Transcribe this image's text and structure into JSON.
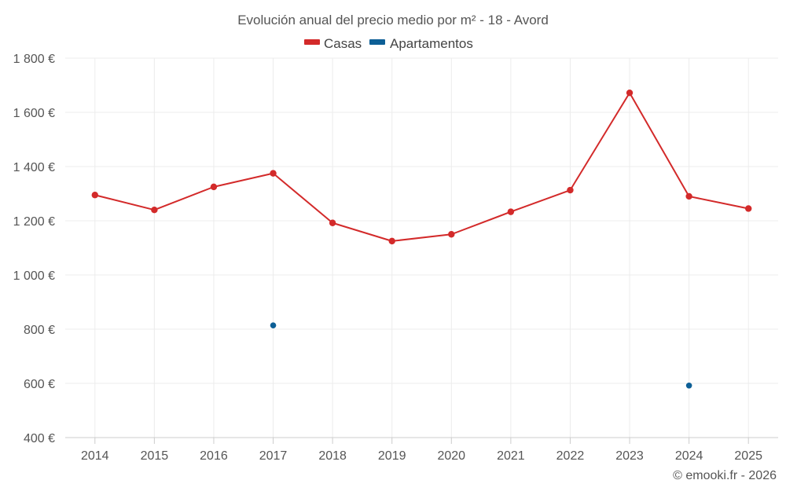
{
  "chart_data": {
    "type": "line",
    "title": "Evolución anual del precio medio por m² - 18 - Avord",
    "credit": "© emooki.fr - 2026",
    "categories": [
      "2014",
      "2015",
      "2016",
      "2017",
      "2018",
      "2019",
      "2020",
      "2021",
      "2022",
      "2023",
      "2024",
      "2025"
    ],
    "ylim": [
      400,
      1800
    ],
    "yticks": [
      400,
      600,
      800,
      1000,
      1200,
      1400,
      1600,
      1800
    ],
    "ytick_labels": [
      "400 €",
      "600 €",
      "800 €",
      "1 000 €",
      "1 200 €",
      "1 400 €",
      "1 600 €",
      "1 800 €"
    ],
    "grid": true,
    "legend_position": "top-center",
    "series": [
      {
        "name": "Casas",
        "color": "#d32a2a",
        "values": [
          1295,
          1240,
          1325,
          1375,
          1192,
          1125,
          1150,
          1233,
          1313,
          1672,
          1290,
          1245
        ]
      },
      {
        "name": "Apartamentos",
        "color": "#0d5f96",
        "values": [
          null,
          null,
          null,
          814,
          null,
          null,
          null,
          null,
          null,
          null,
          592,
          null
        ]
      }
    ]
  }
}
